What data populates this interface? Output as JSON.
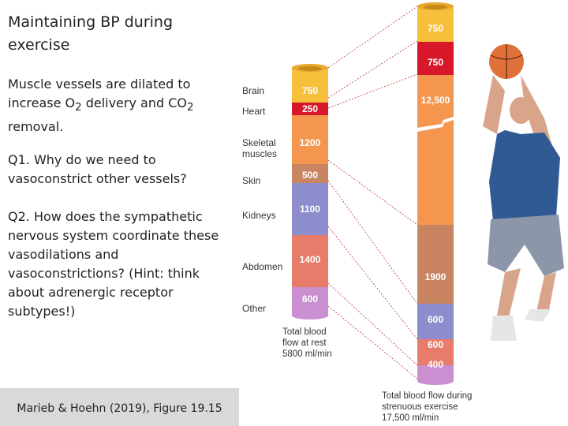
{
  "title": "Maintaining BP during exercise",
  "para1": {
    "a": "Muscle vessels are dilated to increase O",
    "sub1": "2",
    "b": " delivery and CO",
    "sub2": "2",
    "c": " removal."
  },
  "q1": "Q1. Why do we need to vasoconstrict other vessels?",
  "q2": "Q2. How does the sympathetic nervous system coordinate these vasodilations and vasoconstrictions? (Hint: think about adrenergic receptor subtypes!)",
  "citation": "Marieb & Hoehn (2019), Figure 19.15",
  "figure": {
    "organs": [
      {
        "label": "Brain",
        "rest": "750",
        "exercise": "750",
        "color": "#f7c03c"
      },
      {
        "label": "Heart",
        "rest": "250",
        "exercise": "750",
        "color": "#d7172a"
      },
      {
        "label": "Skeletal muscles",
        "rest": "1200",
        "exercise": "12,500",
        "color": "#f4964e"
      },
      {
        "label": "Skin",
        "rest": "500",
        "exercise": "1900",
        "color": "#c98462"
      },
      {
        "label": "Kidneys",
        "rest": "1100",
        "exercise": "600",
        "color": "#8d8ccc"
      },
      {
        "label": "Abdomen",
        "rest": "1400",
        "exercise": "600",
        "color": "#e87c6a"
      },
      {
        "label": "Other",
        "rest": "600",
        "exercise": "400",
        "color": "#c98fd0"
      }
    ],
    "rest_caption": [
      "Total blood",
      "flow at rest",
      "5800 ml/min"
    ],
    "exercise_caption": [
      "Total blood flow during",
      "strenuous exercise",
      "17,500 ml/min"
    ]
  }
}
